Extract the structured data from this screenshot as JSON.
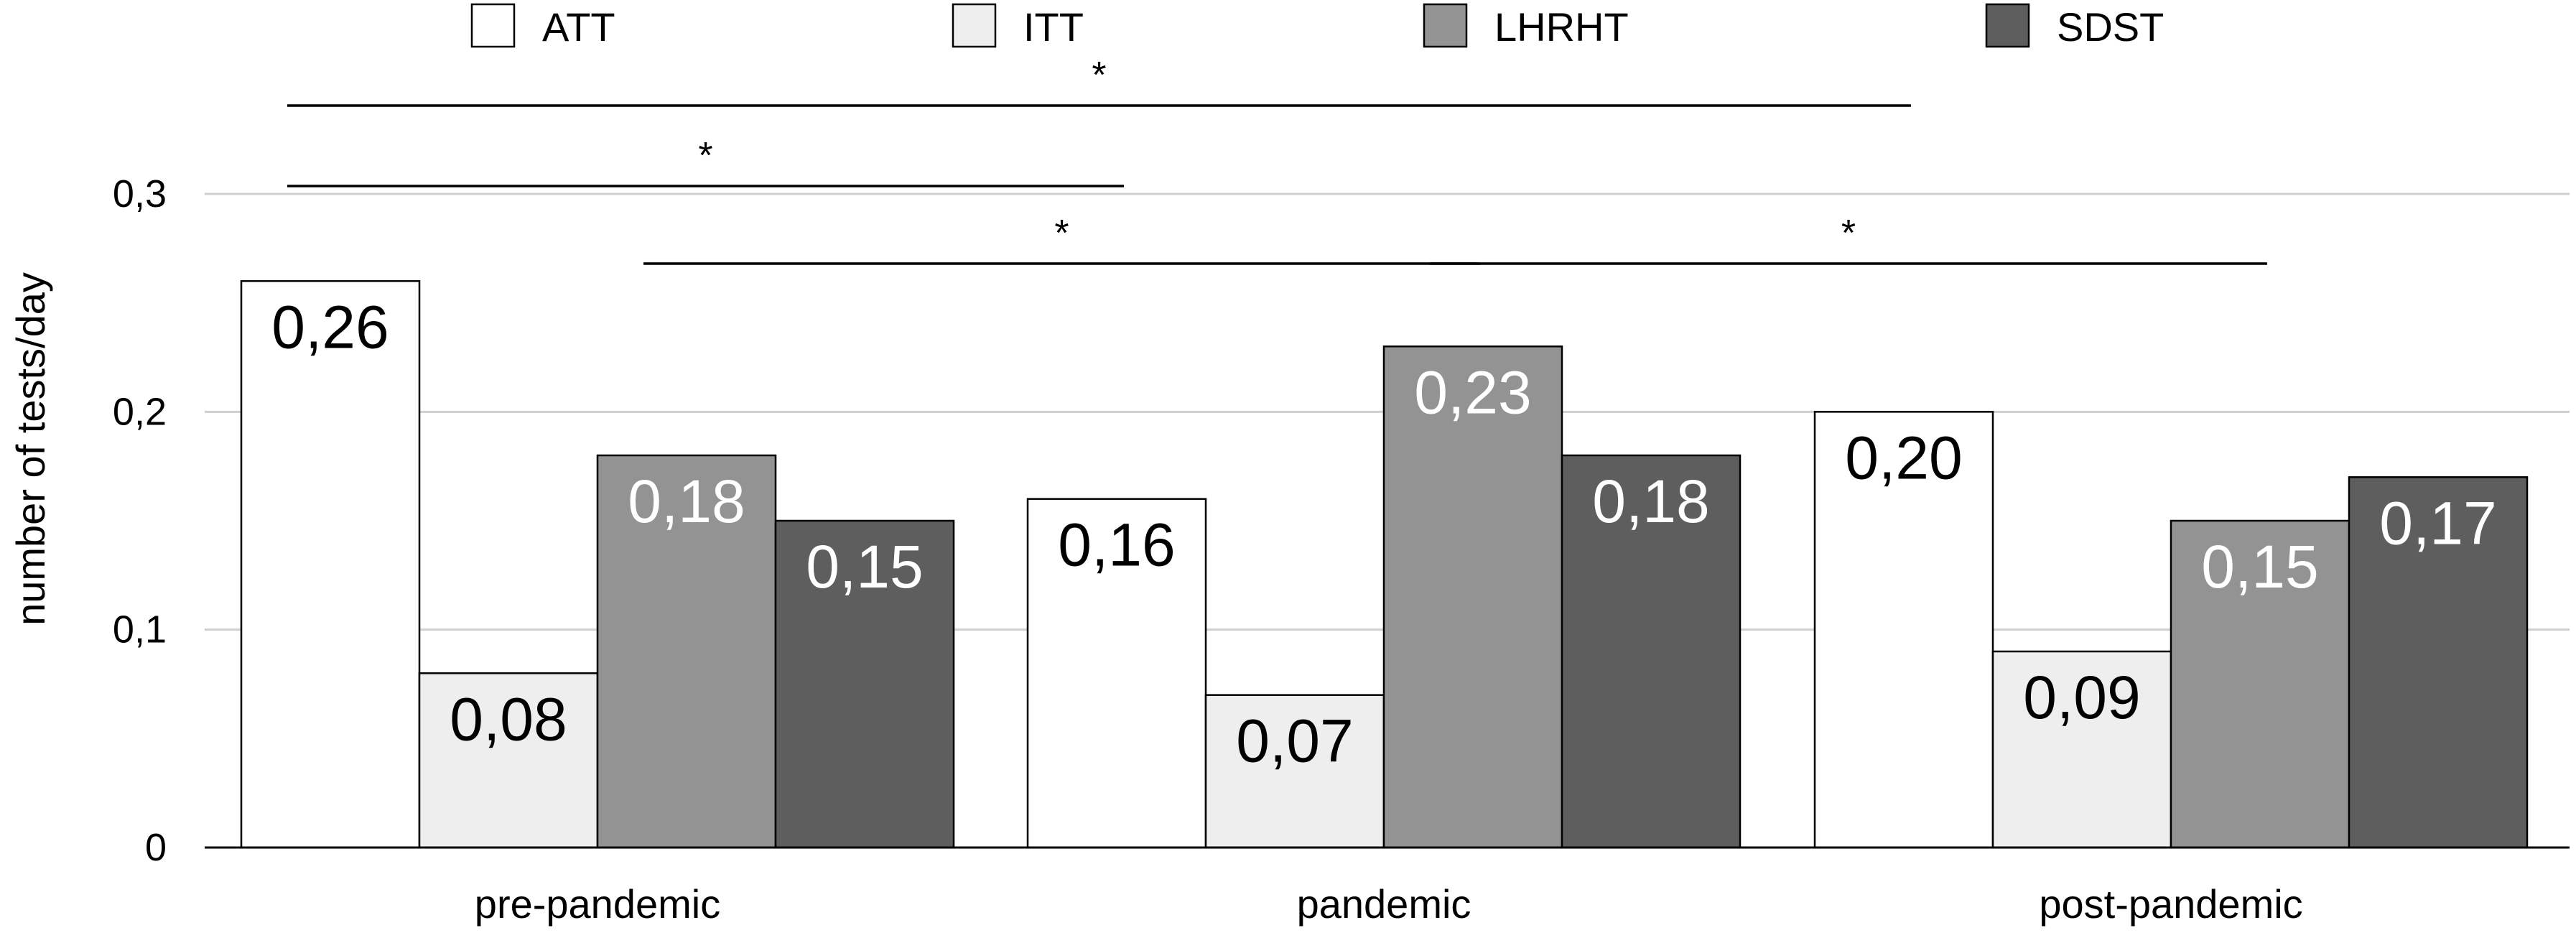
{
  "chart_data": {
    "type": "bar",
    "ylabel": "number of tests/day",
    "ylim": [
      0,
      0.3
    ],
    "yticks": [
      {
        "value": 0,
        "label": "0"
      },
      {
        "value": 0.1,
        "label": "0,1"
      },
      {
        "value": 0.2,
        "label": "0,2"
      },
      {
        "value": 0.3,
        "label": "0,3"
      }
    ],
    "grid": true,
    "legend_position": "top",
    "categories": [
      "pre-pandemic",
      "pandemic",
      "post-pandemic"
    ],
    "series": [
      {
        "name": "ATT",
        "color": "#ffffff",
        "label_color": "#000000",
        "values": [
          0.26,
          0.16,
          0.2
        ],
        "labels": [
          "0,26",
          "0,16",
          "0,20"
        ]
      },
      {
        "name": "ITT",
        "color": "#eeeeee",
        "label_color": "#000000",
        "values": [
          0.08,
          0.07,
          0.09
        ],
        "labels": [
          "0,08",
          "0,07",
          "0,09"
        ]
      },
      {
        "name": "LHRHT",
        "color": "#939393",
        "label_color": "#ffffff",
        "values": [
          0.18,
          0.23,
          0.15
        ],
        "labels": [
          "0,18",
          "0,23",
          "0,15"
        ]
      },
      {
        "name": "SDST",
        "color": "#5e5e5e",
        "label_color": "#ffffff",
        "values": [
          0.15,
          0.18,
          0.17
        ],
        "labels": [
          "0,15",
          "0,18",
          "0,17"
        ]
      }
    ],
    "annotations": [
      {
        "text": "*",
        "from": {
          "category": 0,
          "series": 0
        },
        "to": {
          "category": 2,
          "series": 0
        }
      },
      {
        "text": "*",
        "from": {
          "category": 0,
          "series": 0
        },
        "to": {
          "category": 1,
          "series": 0
        }
      },
      {
        "text": "*",
        "from": {
          "category": 0,
          "series": 2
        },
        "to": {
          "category": 1,
          "series": 2
        }
      },
      {
        "text": "*",
        "from": {
          "category": 1,
          "series": 2
        },
        "to": {
          "category": 2,
          "series": 2
        }
      }
    ]
  }
}
